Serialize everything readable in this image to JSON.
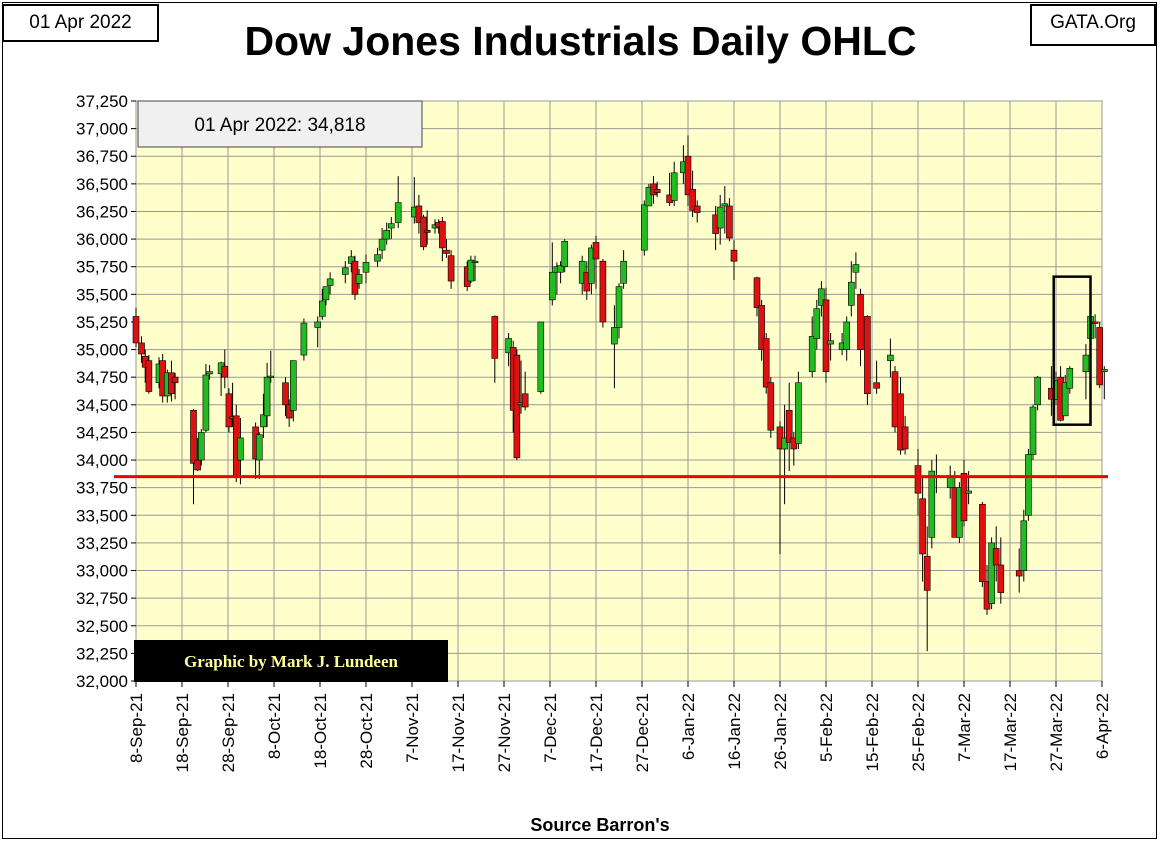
{
  "header": {
    "date": "01 Apr 2022",
    "site": "GATA.Org",
    "title": "Dow Jones Industrials Daily OHLC"
  },
  "annotations": {
    "last_close": "01 Apr 2022: 34,818",
    "credit": "Graphic by Mark J. Lundeen",
    "source": "Source Barron's"
  },
  "colors": {
    "plot_bg": "#ffffcc",
    "up": "#22bb22",
    "down": "#dd1111",
    "reference_line": "#ee0000",
    "credit_bg": "#000000",
    "credit_text": "#ffff99"
  },
  "chart_data": {
    "type": "candlestick",
    "title": "Dow Jones Industrials Daily OHLC",
    "xlabel": "Source Barron's",
    "ylabel": "",
    "ylim": [
      32000,
      37250
    ],
    "yticks": [
      32000,
      32250,
      32500,
      32750,
      33000,
      33250,
      33500,
      33750,
      34000,
      34250,
      34500,
      34750,
      35000,
      35250,
      35500,
      35750,
      36000,
      36250,
      36500,
      36750,
      37000,
      37250
    ],
    "xtick_labels": [
      "8-Sep-21",
      "18-Sep-21",
      "28-Sep-21",
      "8-Oct-21",
      "18-Oct-21",
      "28-Oct-21",
      "7-Nov-21",
      "17-Nov-21",
      "27-Nov-21",
      "7-Dec-21",
      "17-Dec-21",
      "27-Dec-21",
      "6-Jan-22",
      "16-Jan-22",
      "26-Jan-22",
      "5-Feb-22",
      "15-Feb-22",
      "25-Feb-22",
      "7-Mar-22",
      "17-Mar-22",
      "27-Mar-22",
      "6-Apr-22"
    ],
    "grid": true,
    "reference_line": 33850,
    "highlight_box": {
      "x_start": 19.95,
      "x_end": 20.75,
      "y_low": 34320,
      "y_high": 35660
    },
    "candles": [
      {
        "x": 0.0,
        "o": 35300,
        "h": 35380,
        "l": 35020,
        "c": 35060
      },
      {
        "x": 0.12,
        "o": 35060,
        "h": 35120,
        "l": 34880,
        "c": 34960
      },
      {
        "x": 0.2,
        "o": 34940,
        "h": 35000,
        "l": 34700,
        "c": 34840
      },
      {
        "x": 0.28,
        "o": 34900,
        "h": 34950,
        "l": 34600,
        "c": 34620
      },
      {
        "x": 0.5,
        "o": 34700,
        "h": 34930,
        "l": 34650,
        "c": 34870
      },
      {
        "x": 0.58,
        "o": 34900,
        "h": 34960,
        "l": 34520,
        "c": 34580
      },
      {
        "x": 0.68,
        "o": 34580,
        "h": 34820,
        "l": 34520,
        "c": 34790
      },
      {
        "x": 0.77,
        "o": 34790,
        "h": 34900,
        "l": 34530,
        "c": 34600
      },
      {
        "x": 0.85,
        "o": 34750,
        "h": 34790,
        "l": 34550,
        "c": 34700
      },
      {
        "x": 1.25,
        "o": 34450,
        "h": 34460,
        "l": 33600,
        "c": 33970
      },
      {
        "x": 1.34,
        "o": 34000,
        "h": 34200,
        "l": 33900,
        "c": 33910
      },
      {
        "x": 1.42,
        "o": 34000,
        "h": 34280,
        "l": 33950,
        "c": 34250
      },
      {
        "x": 1.52,
        "o": 34270,
        "h": 34870,
        "l": 34250,
        "c": 34770
      },
      {
        "x": 1.6,
        "o": 34780,
        "h": 34860,
        "l": 34730,
        "c": 34800
      },
      {
        "x": 1.85,
        "o": 34780,
        "h": 34890,
        "l": 34580,
        "c": 34880
      },
      {
        "x": 1.93,
        "o": 34850,
        "h": 35000,
        "l": 34650,
        "c": 34750
      },
      {
        "x": 2.02,
        "o": 34600,
        "h": 34650,
        "l": 34250,
        "c": 34300
      },
      {
        "x": 2.1,
        "o": 34380,
        "h": 34700,
        "l": 34300,
        "c": 34390
      },
      {
        "x": 2.18,
        "o": 34400,
        "h": 34500,
        "l": 33800,
        "c": 33850
      },
      {
        "x": 2.27,
        "o": 34000,
        "h": 34380,
        "l": 33780,
        "c": 34200
      },
      {
        "x": 2.6,
        "o": 34300,
        "h": 34340,
        "l": 33830,
        "c": 34010
      },
      {
        "x": 2.68,
        "o": 34000,
        "h": 34250,
        "l": 33830,
        "c": 34230
      },
      {
        "x": 2.77,
        "o": 34300,
        "h": 34600,
        "l": 34200,
        "c": 34410
      },
      {
        "x": 2.85,
        "o": 34400,
        "h": 34880,
        "l": 34300,
        "c": 34750
      },
      {
        "x": 2.93,
        "o": 34750,
        "h": 34990,
        "l": 34700,
        "c": 34760
      },
      {
        "x": 3.25,
        "o": 34700,
        "h": 34750,
        "l": 34400,
        "c": 34500
      },
      {
        "x": 3.33,
        "o": 34500,
        "h": 34550,
        "l": 34300,
        "c": 34380
      },
      {
        "x": 3.42,
        "o": 34450,
        "h": 34900,
        "l": 34350,
        "c": 34900
      },
      {
        "x": 3.65,
        "o": 34950,
        "h": 35280,
        "l": 34900,
        "c": 35240
      },
      {
        "x": 3.95,
        "o": 35200,
        "h": 35300,
        "l": 35020,
        "c": 35250
      },
      {
        "x": 4.05,
        "o": 35300,
        "h": 35550,
        "l": 35270,
        "c": 35440
      },
      {
        "x": 4.13,
        "o": 35450,
        "h": 35560,
        "l": 35400,
        "c": 35570
      },
      {
        "x": 4.22,
        "o": 35580,
        "h": 35700,
        "l": 35500,
        "c": 35640
      },
      {
        "x": 4.55,
        "o": 35680,
        "h": 35800,
        "l": 35600,
        "c": 35740
      },
      {
        "x": 4.68,
        "o": 35780,
        "h": 35900,
        "l": 35700,
        "c": 35840
      },
      {
        "x": 4.76,
        "o": 35800,
        "h": 35850,
        "l": 35450,
        "c": 35500
      },
      {
        "x": 4.85,
        "o": 35600,
        "h": 35730,
        "l": 35550,
        "c": 35680
      },
      {
        "x": 5.0,
        "o": 35700,
        "h": 35860,
        "l": 35600,
        "c": 35790
      },
      {
        "x": 5.25,
        "o": 35800,
        "h": 35920,
        "l": 35750,
        "c": 35860
      },
      {
        "x": 5.35,
        "o": 35900,
        "h": 36100,
        "l": 35820,
        "c": 36000
      },
      {
        "x": 5.45,
        "o": 36000,
        "h": 36150,
        "l": 35950,
        "c": 36080
      },
      {
        "x": 5.55,
        "o": 36100,
        "h": 36200,
        "l": 36000,
        "c": 36140
      },
      {
        "x": 5.7,
        "o": 36150,
        "h": 36570,
        "l": 36100,
        "c": 36330
      },
      {
        "x": 6.05,
        "o": 36200,
        "h": 36560,
        "l": 36140,
        "c": 36290
      },
      {
        "x": 6.15,
        "o": 36300,
        "h": 36400,
        "l": 36050,
        "c": 36150
      },
      {
        "x": 6.25,
        "o": 36200,
        "h": 36220,
        "l": 35900,
        "c": 35930
      },
      {
        "x": 6.33,
        "o": 36080,
        "h": 36260,
        "l": 35950,
        "c": 36060
      },
      {
        "x": 6.5,
        "o": 36100,
        "h": 36180,
        "l": 36050,
        "c": 36130
      },
      {
        "x": 6.58,
        "o": 36150,
        "h": 36180,
        "l": 36050,
        "c": 36110
      },
      {
        "x": 6.66,
        "o": 36160,
        "h": 36200,
        "l": 35800,
        "c": 35920
      },
      {
        "x": 6.75,
        "o": 35900,
        "h": 36000,
        "l": 35830,
        "c": 35870
      },
      {
        "x": 6.85,
        "o": 35850,
        "h": 35900,
        "l": 35550,
        "c": 35620
      },
      {
        "x": 7.2,
        "o": 35750,
        "h": 35800,
        "l": 35530,
        "c": 35570
      },
      {
        "x": 7.28,
        "o": 35620,
        "h": 35850,
        "l": 35600,
        "c": 35810
      },
      {
        "x": 7.37,
        "o": 35800,
        "h": 35850,
        "l": 35620,
        "c": 35800
      },
      {
        "x": 7.8,
        "o": 35300,
        "h": 35310,
        "l": 34700,
        "c": 34920
      },
      {
        "x": 8.1,
        "o": 34970,
        "h": 35150,
        "l": 34850,
        "c": 35100
      },
      {
        "x": 8.2,
        "o": 35020,
        "h": 35080,
        "l": 34250,
        "c": 34450
      },
      {
        "x": 8.28,
        "o": 34950,
        "h": 35000,
        "l": 34000,
        "c": 34020
      },
      {
        "x": 8.37,
        "o": 34500,
        "h": 34900,
        "l": 34420,
        "c": 34520
      },
      {
        "x": 8.46,
        "o": 34600,
        "h": 34800,
        "l": 34450,
        "c": 34480
      },
      {
        "x": 8.8,
        "o": 34620,
        "h": 35250,
        "l": 34600,
        "c": 35250
      },
      {
        "x": 9.05,
        "o": 35450,
        "h": 35970,
        "l": 35400,
        "c": 35700
      },
      {
        "x": 9.15,
        "o": 35700,
        "h": 35790,
        "l": 35500,
        "c": 35750
      },
      {
        "x": 9.23,
        "o": 35700,
        "h": 35800,
        "l": 35600,
        "c": 35760
      },
      {
        "x": 9.32,
        "o": 35750,
        "h": 36000,
        "l": 35700,
        "c": 35980
      },
      {
        "x": 9.7,
        "o": 35600,
        "h": 35850,
        "l": 35500,
        "c": 35800
      },
      {
        "x": 9.8,
        "o": 35700,
        "h": 35800,
        "l": 35450,
        "c": 35530
      },
      {
        "x": 9.9,
        "o": 35600,
        "h": 35950,
        "l": 35500,
        "c": 35920
      },
      {
        "x": 10.0,
        "o": 35970,
        "h": 36030,
        "l": 35550,
        "c": 35820
      },
      {
        "x": 10.15,
        "o": 35800,
        "h": 35820,
        "l": 35200,
        "c": 35250
      },
      {
        "x": 10.4,
        "o": 35050,
        "h": 35400,
        "l": 34650,
        "c": 35200
      },
      {
        "x": 10.5,
        "o": 35200,
        "h": 35600,
        "l": 35100,
        "c": 35570
      },
      {
        "x": 10.6,
        "o": 35600,
        "h": 35900,
        "l": 35550,
        "c": 35800
      },
      {
        "x": 11.05,
        "o": 35900,
        "h": 36350,
        "l": 35850,
        "c": 36310
      },
      {
        "x": 11.15,
        "o": 36300,
        "h": 36500,
        "l": 36300,
        "c": 36470
      },
      {
        "x": 11.25,
        "o": 36500,
        "h": 36570,
        "l": 36320,
        "c": 36400
      },
      {
        "x": 11.33,
        "o": 36450,
        "h": 36520,
        "l": 36380,
        "c": 36420
      },
      {
        "x": 11.6,
        "o": 36400,
        "h": 36600,
        "l": 36300,
        "c": 36330
      },
      {
        "x": 11.7,
        "o": 36350,
        "h": 36700,
        "l": 36300,
        "c": 36600
      },
      {
        "x": 11.9,
        "o": 36600,
        "h": 36850,
        "l": 36500,
        "c": 36700
      },
      {
        "x": 12.0,
        "o": 36750,
        "h": 36940,
        "l": 36300,
        "c": 36400
      },
      {
        "x": 12.1,
        "o": 36450,
        "h": 36620,
        "l": 36200,
        "c": 36260
      },
      {
        "x": 12.2,
        "o": 36300,
        "h": 36350,
        "l": 36150,
        "c": 36240
      },
      {
        "x": 12.6,
        "o": 36220,
        "h": 36300,
        "l": 35900,
        "c": 36050
      },
      {
        "x": 12.7,
        "o": 36100,
        "h": 36400,
        "l": 35950,
        "c": 36290
      },
      {
        "x": 12.8,
        "o": 36300,
        "h": 36480,
        "l": 36050,
        "c": 36320
      },
      {
        "x": 12.9,
        "o": 36300,
        "h": 36370,
        "l": 35980,
        "c": 36010
      },
      {
        "x": 13.0,
        "o": 35900,
        "h": 35990,
        "l": 35630,
        "c": 35800
      },
      {
        "x": 13.5,
        "o": 35650,
        "h": 35660,
        "l": 35300,
        "c": 35380
      },
      {
        "x": 13.6,
        "o": 35400,
        "h": 35450,
        "l": 34900,
        "c": 35000
      },
      {
        "x": 13.7,
        "o": 35100,
        "h": 35150,
        "l": 34600,
        "c": 34660
      },
      {
        "x": 13.8,
        "o": 34700,
        "h": 34750,
        "l": 34200,
        "c": 34270
      },
      {
        "x": 14.0,
        "o": 34300,
        "h": 34350,
        "l": 33150,
        "c": 34100
      },
      {
        "x": 14.1,
        "o": 34100,
        "h": 34500,
        "l": 33600,
        "c": 34200
      },
      {
        "x": 14.2,
        "o": 34450,
        "h": 34700,
        "l": 33900,
        "c": 34160
      },
      {
        "x": 14.3,
        "o": 34200,
        "h": 34250,
        "l": 33950,
        "c": 34100
      },
      {
        "x": 14.4,
        "o": 34150,
        "h": 34800,
        "l": 34100,
        "c": 34700
      },
      {
        "x": 14.7,
        "o": 34800,
        "h": 35300,
        "l": 34750,
        "c": 35120
      },
      {
        "x": 14.8,
        "o": 35100,
        "h": 35450,
        "l": 35000,
        "c": 35370
      },
      {
        "x": 14.9,
        "o": 35400,
        "h": 35620,
        "l": 35300,
        "c": 35550
      },
      {
        "x": 15.0,
        "o": 35450,
        "h": 35560,
        "l": 34700,
        "c": 34800
      },
      {
        "x": 15.1,
        "o": 35050,
        "h": 35150,
        "l": 34900,
        "c": 35080
      },
      {
        "x": 15.35,
        "o": 35000,
        "h": 35150,
        "l": 34950,
        "c": 35060
      },
      {
        "x": 15.45,
        "o": 35000,
        "h": 35300,
        "l": 34900,
        "c": 35250
      },
      {
        "x": 15.55,
        "o": 35400,
        "h": 35800,
        "l": 35300,
        "c": 35610
      },
      {
        "x": 15.65,
        "o": 35700,
        "h": 35880,
        "l": 35550,
        "c": 35770
      },
      {
        "x": 15.75,
        "o": 35500,
        "h": 35550,
        "l": 34850,
        "c": 35000
      },
      {
        "x": 15.9,
        "o": 35300,
        "h": 35310,
        "l": 34500,
        "c": 34600
      },
      {
        "x": 16.1,
        "o": 34700,
        "h": 34900,
        "l": 34600,
        "c": 34650
      },
      {
        "x": 16.4,
        "o": 34900,
        "h": 35100,
        "l": 34750,
        "c": 34950
      },
      {
        "x": 16.5,
        "o": 34800,
        "h": 34850,
        "l": 34250,
        "c": 34300
      },
      {
        "x": 16.62,
        "o": 34600,
        "h": 34750,
        "l": 34050,
        "c": 34090
      },
      {
        "x": 16.72,
        "o": 34300,
        "h": 34400,
        "l": 34050,
        "c": 34100
      },
      {
        "x": 17.0,
        "o": 33950,
        "h": 34100,
        "l": 33500,
        "c": 33700
      },
      {
        "x": 17.1,
        "o": 33650,
        "h": 33850,
        "l": 32900,
        "c": 33150
      },
      {
        "x": 17.2,
        "o": 33130,
        "h": 33400,
        "l": 32270,
        "c": 32820
      },
      {
        "x": 17.3,
        "o": 33300,
        "h": 34000,
        "l": 33200,
        "c": 33900
      },
      {
        "x": 17.4,
        "o": 33850,
        "h": 34050,
        "l": 33700,
        "c": 33860
      },
      {
        "x": 17.7,
        "o": 33750,
        "h": 33950,
        "l": 33650,
        "c": 33850
      },
      {
        "x": 17.8,
        "o": 33750,
        "h": 33900,
        "l": 33300,
        "c": 33300
      },
      {
        "x": 17.9,
        "o": 33300,
        "h": 33800,
        "l": 33250,
        "c": 33750
      },
      {
        "x": 18.0,
        "o": 33880,
        "h": 34000,
        "l": 33400,
        "c": 33450
      },
      {
        "x": 18.1,
        "o": 33700,
        "h": 33900,
        "l": 33600,
        "c": 33720
      },
      {
        "x": 18.4,
        "o": 33600,
        "h": 33620,
        "l": 32850,
        "c": 32900
      },
      {
        "x": 18.5,
        "o": 32900,
        "h": 33050,
        "l": 32600,
        "c": 32650
      },
      {
        "x": 18.6,
        "o": 32700,
        "h": 33300,
        "l": 32650,
        "c": 33250
      },
      {
        "x": 18.7,
        "o": 33200,
        "h": 33400,
        "l": 32900,
        "c": 33050
      },
      {
        "x": 18.8,
        "o": 33050,
        "h": 33300,
        "l": 32700,
        "c": 32800
      },
      {
        "x": 19.2,
        "o": 33000,
        "h": 33200,
        "l": 32800,
        "c": 32950
      },
      {
        "x": 19.3,
        "o": 33000,
        "h": 33550,
        "l": 32900,
        "c": 33450
      },
      {
        "x": 19.4,
        "o": 33500,
        "h": 34100,
        "l": 33450,
        "c": 34050
      },
      {
        "x": 19.5,
        "o": 34050,
        "h": 34500,
        "l": 34000,
        "c": 34480
      },
      {
        "x": 19.6,
        "o": 34500,
        "h": 34760,
        "l": 34450,
        "c": 34750
      },
      {
        "x": 19.9,
        "o": 34650,
        "h": 34850,
        "l": 34400,
        "c": 34550
      },
      {
        "x": 20.0,
        "o": 34550,
        "h": 34800,
        "l": 34500,
        "c": 34720
      },
      {
        "x": 20.1,
        "o": 34750,
        "h": 34850,
        "l": 34350,
        "c": 34360
      },
      {
        "x": 20.2,
        "o": 34400,
        "h": 34770,
        "l": 34400,
        "c": 34700
      },
      {
        "x": 20.3,
        "o": 34650,
        "h": 34850,
        "l": 34600,
        "c": 34830
      },
      {
        "x": 20.65,
        "o": 34800,
        "h": 35050,
        "l": 34550,
        "c": 34950
      },
      {
        "x": 20.75,
        "o": 35100,
        "h": 35340,
        "l": 35050,
        "c": 35300
      },
      {
        "x": 20.85,
        "o": 35250,
        "h": 35320,
        "l": 35100,
        "c": 35240
      },
      {
        "x": 20.95,
        "o": 35200,
        "h": 35250,
        "l": 34650,
        "c": 34680
      },
      {
        "x": 21.05,
        "o": 34800,
        "h": 34850,
        "l": 34550,
        "c": 34820
      }
    ]
  }
}
